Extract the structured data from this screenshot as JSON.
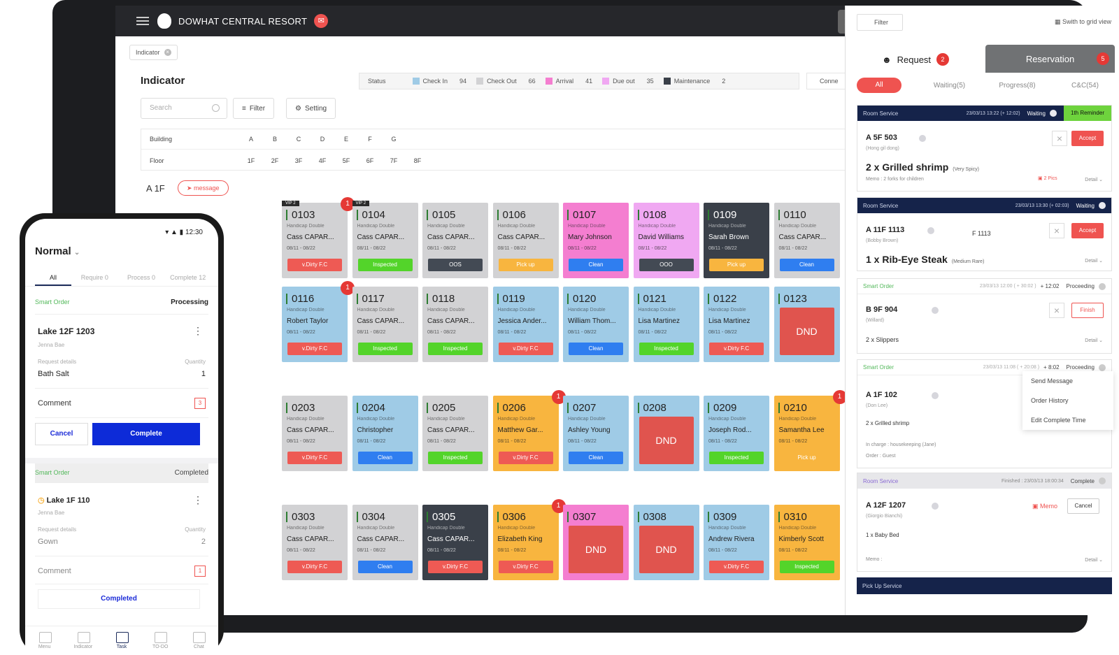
{
  "header": {
    "resort": "DOWHAT CENTRAL RESORT",
    "badge": "",
    "tag": "Indicator"
  },
  "indicator": {
    "title": "Indicator",
    "status_label": "Status",
    "statuses": [
      {
        "label": "Check In",
        "value": "94",
        "color": "#9fcbe6"
      },
      {
        "label": "Check Out",
        "value": "66",
        "color": "#d2d2d4"
      },
      {
        "label": "Arrival",
        "value": "41",
        "color": "#f47ed0"
      },
      {
        "label": "Due out",
        "value": "35",
        "color": "#f0a8f2"
      },
      {
        "label": "Maintenance",
        "value": "2",
        "color": "#3a4049"
      }
    ],
    "connect": "Conne",
    "search_placeholder": "Search",
    "filter": "Filter",
    "setting": "Setting",
    "building_label": "Building",
    "buildings": [
      "A",
      "B",
      "C",
      "D",
      "E",
      "F",
      "G"
    ],
    "floor_label": "Floor",
    "floors": [
      "1F",
      "2F",
      "3F",
      "4F",
      "5F",
      "6F",
      "7F",
      "8F"
    ],
    "current_floor": "A 1F",
    "message": "message"
  },
  "rooms": {
    "row1": [
      {
        "num": "0103",
        "sub": "Handicap Double",
        "guest": "Cass CAPAR...",
        "dates": "08/11 - 08/22",
        "status": "v.Dirty F.C",
        "vip": "VIP 2",
        "badge": "1"
      },
      {
        "num": "0104",
        "sub": "Handicap Double",
        "guest": "Cass CAPAR...",
        "dates": "08/11 - 08/22",
        "status": "Inspected",
        "vip": "VIP 2"
      },
      {
        "num": "0105",
        "sub": "Handicap Double",
        "guest": "Cass CAPAR...",
        "dates": "08/11 - 08/22",
        "status": "OOS"
      },
      {
        "num": "0106",
        "sub": "Handicap Double",
        "guest": "Cass CAPAR...",
        "dates": "08/11 - 08/22",
        "status": "Pick up"
      },
      {
        "num": "0107",
        "sub": "Handicap Double",
        "guest": "Mary Johnson",
        "dates": "08/11 - 08/22",
        "status": "Clean"
      },
      {
        "num": "0108",
        "sub": "Handicap Double",
        "guest": "David Williams",
        "dates": "08/11 - 08/22",
        "status": "OOO"
      },
      {
        "num": "0109",
        "sub": "Handicap Double",
        "guest": "Sarah Brown",
        "dates": "08/11 - 08/22",
        "status": "Pick up"
      },
      {
        "num": "0110",
        "sub": "Handicap Double",
        "guest": "Cass CAPAR...",
        "dates": "08/11 - 08/22",
        "status": "Clean"
      }
    ],
    "row2": [
      {
        "num": "0116",
        "sub": "Handicap Double",
        "guest": "Robert Taylor",
        "dates": "08/11 - 08/22",
        "status": "v.Dirty F.C",
        "badge": "1"
      },
      {
        "num": "0117",
        "sub": "Handicap Double",
        "guest": "Cass CAPAR...",
        "dates": "08/11 - 08/22",
        "status": "Inspected"
      },
      {
        "num": "0118",
        "sub": "Handicap Double",
        "guest": "Cass CAPAR...",
        "dates": "08/11 - 08/22",
        "status": "Inspected"
      },
      {
        "num": "0119",
        "sub": "Handicap Double",
        "guest": "Jessica Ander...",
        "dates": "08/11 - 08/22",
        "status": "v.Dirty F.C"
      },
      {
        "num": "0120",
        "sub": "Handicap Double",
        "guest": "William Thom...",
        "dates": "08/11 - 08/22",
        "status": "Clean"
      },
      {
        "num": "0121",
        "sub": "Handicap Double",
        "guest": "Lisa Martinez",
        "dates": "08/11 - 08/22",
        "status": "Inspected"
      },
      {
        "num": "0122",
        "sub": "Handicap Double",
        "guest": "Lisa Martinez",
        "dates": "08/11 - 08/22",
        "status": "v.Dirty F.C"
      },
      {
        "num": "0123",
        "dnd": "DND"
      }
    ],
    "row3": [
      {
        "num": "0203",
        "sub": "Handicap Double",
        "guest": "Cass CAPAR...",
        "dates": "08/11 - 08/22",
        "status": "v.Dirty F.C"
      },
      {
        "num": "0204",
        "sub": "Handicap Double",
        "guest": "Christopher",
        "dates": "08/11 - 08/22",
        "status": "Clean"
      },
      {
        "num": "0205",
        "sub": "Handicap Double",
        "guest": "Cass CAPAR...",
        "dates": "08/11 - 08/22",
        "status": "Inspected"
      },
      {
        "num": "0206",
        "sub": "Handicap Double",
        "guest": "Matthew Gar...",
        "dates": "08/11 - 08/22",
        "status": "v.Dirty F.C",
        "badge": "1"
      },
      {
        "num": "0207",
        "sub": "Handicap Double",
        "guest": "Ashley Young",
        "dates": "08/11 - 08/22",
        "status": "Clean"
      },
      {
        "num": "0208",
        "dnd": "DND"
      },
      {
        "num": "0209",
        "sub": "Handicap Double",
        "guest": "Joseph Rod...",
        "dates": "08/11 - 08/22",
        "status": "Inspected"
      },
      {
        "num": "0210",
        "sub": "Handicap Double",
        "guest": "Samantha Lee",
        "dates": "08/11 - 08/22",
        "status": "Pick up",
        "badge": "1"
      }
    ],
    "row4": [
      {
        "num": "0303",
        "sub": "Handicap Double",
        "guest": "Cass CAPAR...",
        "dates": "08/11 - 08/22",
        "status": "v.Dirty F.C"
      },
      {
        "num": "0304",
        "sub": "Handicap Double",
        "guest": "Cass CAPAR...",
        "dates": "08/11 - 08/22",
        "status": "Clean"
      },
      {
        "num": "0305",
        "sub": "Handicap Double",
        "guest": "Cass CAPAR...",
        "dates": "08/11 - 08/22",
        "status": "v.Dirty F.C"
      },
      {
        "num": "0306",
        "sub": "Handicap Double",
        "guest": "Elizabeth King",
        "dates": "08/11 - 08/22",
        "status": "v.Dirty F.C",
        "badge": "1"
      },
      {
        "num": "0307",
        "dnd": "DND"
      },
      {
        "num": "0308",
        "dnd": "DND"
      },
      {
        "num": "0309",
        "sub": "Handicap Double",
        "guest": "Andrew Rivera",
        "dates": "08/11 - 08/22",
        "status": "v.Dirty F.C"
      },
      {
        "num": "0310",
        "sub": "Handicap Double",
        "guest": "Kimberly Scott",
        "dates": "08/11 - 08/22",
        "status": "Inspected"
      }
    ]
  },
  "panel": {
    "filter": "Filter",
    "grid_view": "Swith to grid view",
    "tab_request": "Request",
    "tab_request_count": "2",
    "tab_reservation": "Reservation",
    "tab_reservation_count": "5",
    "subtabs": [
      "All",
      "Waiting(5)",
      "Progress(8)",
      "C&C(54)"
    ],
    "cards": [
      {
        "type": "Room Service",
        "time": "23/03/13 13:22 (+ 12:02)",
        "status": "Waiting",
        "reminder": "1th Reminder",
        "room": "A 5F 503",
        "name": "(Hong gil dong)",
        "item": "2 x Grilled shrimp",
        "note": "(Very Spicy)",
        "memo": "Memo : 2 forks for children",
        "pics": "2 Pics",
        "detail": "Detail",
        "accept": "Accept"
      },
      {
        "type": "Room Service",
        "time": "23/03/13 13:30 (+ 02:03)",
        "status": "Waiting",
        "room": "A 11F 1113",
        "name": "(Bobby Brown)",
        "to": "F 1113",
        "item": "1 x Rib-Eye Steak",
        "note": "(Medium Rare)",
        "detail": "Detail",
        "accept": "Accept"
      },
      {
        "type": "Smart Order",
        "time": "23/03/13 12:00 ( + 30:02 )",
        "timer": "+ 12:02",
        "status": "Proceeding",
        "room": "B 9F 904",
        "name": "(Willard)",
        "item": "2 x Slippers",
        "detail": "Detail",
        "finish": "Finish"
      },
      {
        "type": "Smart Order",
        "time": "23/03/13 11:08 ( + 20:08 )",
        "timer": "+ 8:02",
        "status": "Proceeding",
        "room": "A 1F 102",
        "name": "(Don Lee)",
        "item": "2 x Grilled shrimp",
        "charge": "In charge : housekeeping  (Jane)",
        "order": "Order : Guest",
        "menu": [
          "Send Message",
          "Order History",
          "Edit Complete Time"
        ]
      },
      {
        "type": "Room Service",
        "time": "Finished : 23/03/13 18:00:34",
        "status": "Complete",
        "room": "A 12F 1207",
        "name": "(Giorgio Bianchi)",
        "item": "1 x Baby Bed",
        "memo": "Memo :",
        "memo_btn": "Memo",
        "cancel": "Cancel",
        "detail": "Detail"
      },
      {
        "type": "Pick Up Service"
      }
    ]
  },
  "phone": {
    "time": "12:30",
    "mode": "Normal",
    "tabs": [
      {
        "label": "All"
      },
      {
        "label": "Require",
        "count": "0"
      },
      {
        "label": "Process",
        "count": "0"
      },
      {
        "label": "Complete",
        "count": "12"
      }
    ],
    "order1": {
      "type": "Smart Order",
      "status": "Processing",
      "room": "Lake 12F 1203",
      "guest": "Jenna Bae",
      "req_label": "Request details",
      "qty_label": "Quantity",
      "item": "Bath Salt",
      "qty": "1",
      "comment": "Comment",
      "comment_count": "3",
      "cancel": "Cancel",
      "complete": "Complete"
    },
    "order2": {
      "type": "Smart Order",
      "status": "Completed",
      "room": "Lake 1F 110",
      "guest": "Jenna Bae",
      "req_label": "Request details",
      "qty_label": "Quantity",
      "item": "Gown",
      "qty": "2",
      "comment": "Comment",
      "comment_count": "1",
      "completed": "Completed"
    },
    "footer": [
      "Menu",
      "Indicator",
      "Task",
      "TO-DO",
      "Chat"
    ]
  }
}
